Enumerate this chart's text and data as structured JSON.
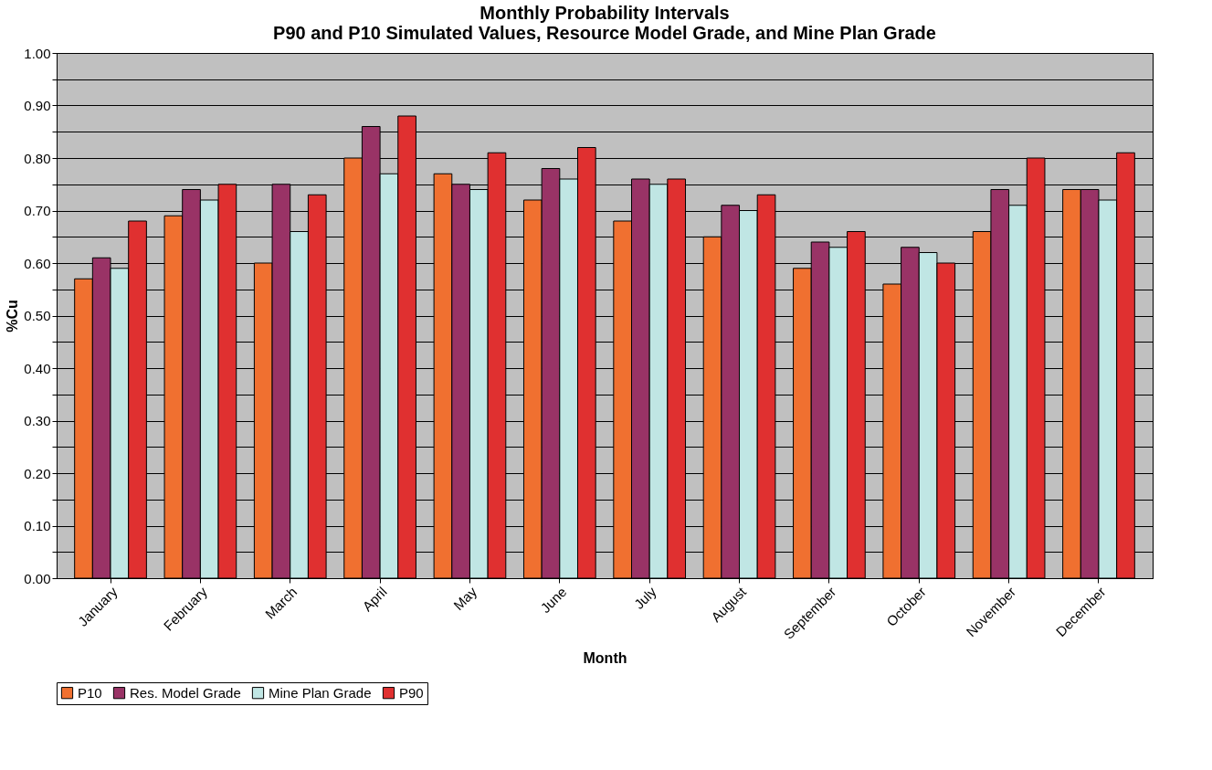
{
  "chart_data": {
    "type": "bar",
    "title": "Monthly Probability Intervals\nP90 and P10 Simulated Values, Resource Model Grade, and Mine Plan Grade",
    "xlabel": "Month",
    "ylabel": "%Cu",
    "categories": [
      "January",
      "February",
      "March",
      "April",
      "May",
      "June",
      "July",
      "August",
      "September",
      "October",
      "November",
      "December"
    ],
    "series": [
      {
        "name": "P10",
        "color": "#f07030",
        "values": [
          0.57,
          0.69,
          0.6,
          0.8,
          0.77,
          0.72,
          0.68,
          0.65,
          0.59,
          0.56,
          0.66,
          0.74
        ]
      },
      {
        "name": "Res. Model Grade",
        "color": "#993366",
        "values": [
          0.61,
          0.74,
          0.75,
          0.86,
          0.75,
          0.78,
          0.76,
          0.71,
          0.64,
          0.63,
          0.74,
          0.74
        ]
      },
      {
        "name": "Mine Plan Grade",
        "color": "#c0e6e4",
        "values": [
          0.59,
          0.72,
          0.66,
          0.77,
          0.74,
          0.76,
          0.75,
          0.7,
          0.63,
          0.62,
          0.71,
          0.72
        ]
      },
      {
        "name": "P90",
        "color": "#e03030",
        "values": [
          0.68,
          0.75,
          0.73,
          0.88,
          0.81,
          0.82,
          0.76,
          0.73,
          0.66,
          0.6,
          0.8,
          0.81
        ]
      }
    ],
    "ylim": [
      0,
      1
    ],
    "yticks": [
      {
        "value": 0,
        "label": "0.00"
      },
      {
        "value": 0.05,
        "label": null
      },
      {
        "value": 0.1,
        "label": "0.10"
      },
      {
        "value": 0.15,
        "label": null
      },
      {
        "value": 0.2,
        "label": "0.20"
      },
      {
        "value": 0.25,
        "label": null
      },
      {
        "value": 0.3,
        "label": "0.30"
      },
      {
        "value": 0.35,
        "label": null
      },
      {
        "value": 0.4,
        "label": "0.40"
      },
      {
        "value": 0.45,
        "label": null
      },
      {
        "value": 0.5,
        "label": "0.50"
      },
      {
        "value": 0.55,
        "label": null
      },
      {
        "value": 0.6,
        "label": "0.60"
      },
      {
        "value": 0.65,
        "label": null
      },
      {
        "value": 0.7,
        "label": "0.70"
      },
      {
        "value": 0.75,
        "label": null
      },
      {
        "value": 0.8,
        "label": "0.80"
      },
      {
        "value": 0.85,
        "label": null
      },
      {
        "value": 0.9,
        "label": "0.90"
      },
      {
        "value": 0.95,
        "label": null
      },
      {
        "value": 1.0,
        "label": "1.00"
      }
    ],
    "grid": "y",
    "legend": "bottom"
  }
}
